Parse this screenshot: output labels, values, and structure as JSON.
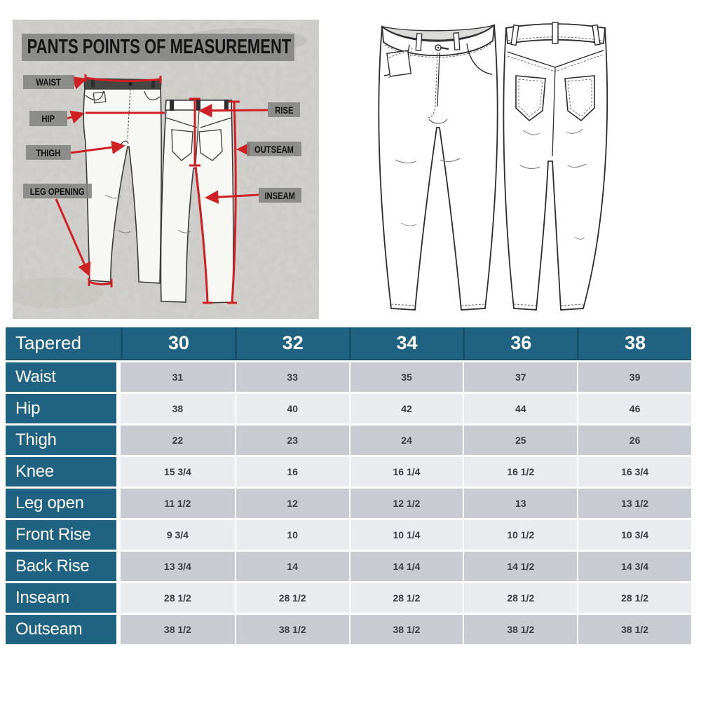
{
  "diagram": {
    "title": "PANTS POINTS OF MEASUREMENT",
    "labels": {
      "waist": "WAIST",
      "hip": "HIP",
      "thigh": "THIGH",
      "leg_opening": "LEG OPENING",
      "rise": "RISE",
      "outseam": "OUTSEAM",
      "inseam": "INSEAM"
    },
    "colors": {
      "arrow_red": "#cf2026",
      "label_chip_gray": "#828280",
      "concrete_background": "#d9d8d4"
    }
  },
  "size_chart": {
    "corner_label": "Tapered",
    "columns": [
      "30",
      "32",
      "34",
      "36",
      "38"
    ],
    "rows": [
      {
        "label": "Waist",
        "values": [
          "31",
          "33",
          "35",
          "37",
          "39"
        ]
      },
      {
        "label": "Hip",
        "values": [
          "38",
          "40",
          "42",
          "44",
          "46"
        ]
      },
      {
        "label": "Thigh",
        "values": [
          "22",
          "23",
          "24",
          "25",
          "26"
        ]
      },
      {
        "label": "Knee",
        "values": [
          "15 3/4",
          "16",
          "16 1/4",
          "16 1/2",
          "16 3/4"
        ]
      },
      {
        "label": "Leg open",
        "values": [
          "11 1/2",
          "12",
          "12 1/2",
          "13",
          "13 1/2"
        ]
      },
      {
        "label": "Front Rise",
        "values": [
          "9 3/4",
          "10",
          "10 1/4",
          "10 1/2",
          "10 3/4"
        ]
      },
      {
        "label": "Back Rise",
        "values": [
          "13 3/4",
          "14",
          "14 1/4",
          "14 1/2",
          "14 3/4"
        ]
      },
      {
        "label": "Inseam",
        "values": [
          "28 1/2",
          "28 1/2",
          "28 1/2",
          "28 1/2",
          "28 1/2"
        ]
      },
      {
        "label": "Outseam",
        "values": [
          "38 1/2",
          "38 1/2",
          "38 1/2",
          "38 1/2",
          "38 1/2"
        ]
      }
    ],
    "colors": {
      "header_teal": "#1f6282",
      "header_divider": "#174f68",
      "row_dark_gray": "#c8ccd2",
      "row_light_gray": "#e9ebee",
      "value_text": "#3a3d43"
    }
  },
  "chart_data": {
    "type": "table",
    "title": "Tapered pants size chart",
    "categories": [
      "30",
      "32",
      "34",
      "36",
      "38"
    ],
    "series": [
      {
        "name": "Waist",
        "values": [
          31,
          33,
          35,
          37,
          39
        ]
      },
      {
        "name": "Hip",
        "values": [
          38,
          40,
          42,
          44,
          46
        ]
      },
      {
        "name": "Thigh",
        "values": [
          22,
          23,
          24,
          25,
          26
        ]
      },
      {
        "name": "Knee",
        "values": [
          15.75,
          16,
          16.25,
          16.5,
          16.75
        ]
      },
      {
        "name": "Leg open",
        "values": [
          11.5,
          12,
          12.5,
          13,
          13.5
        ]
      },
      {
        "name": "Front Rise",
        "values": [
          9.75,
          10,
          10.25,
          10.5,
          10.75
        ]
      },
      {
        "name": "Back Rise",
        "values": [
          13.75,
          14,
          14.25,
          14.5,
          14.75
        ]
      },
      {
        "name": "Inseam",
        "values": [
          28.5,
          28.5,
          28.5,
          28.5,
          28.5
        ]
      },
      {
        "name": "Outseam",
        "values": [
          38.5,
          38.5,
          38.5,
          38.5,
          38.5
        ]
      }
    ]
  }
}
